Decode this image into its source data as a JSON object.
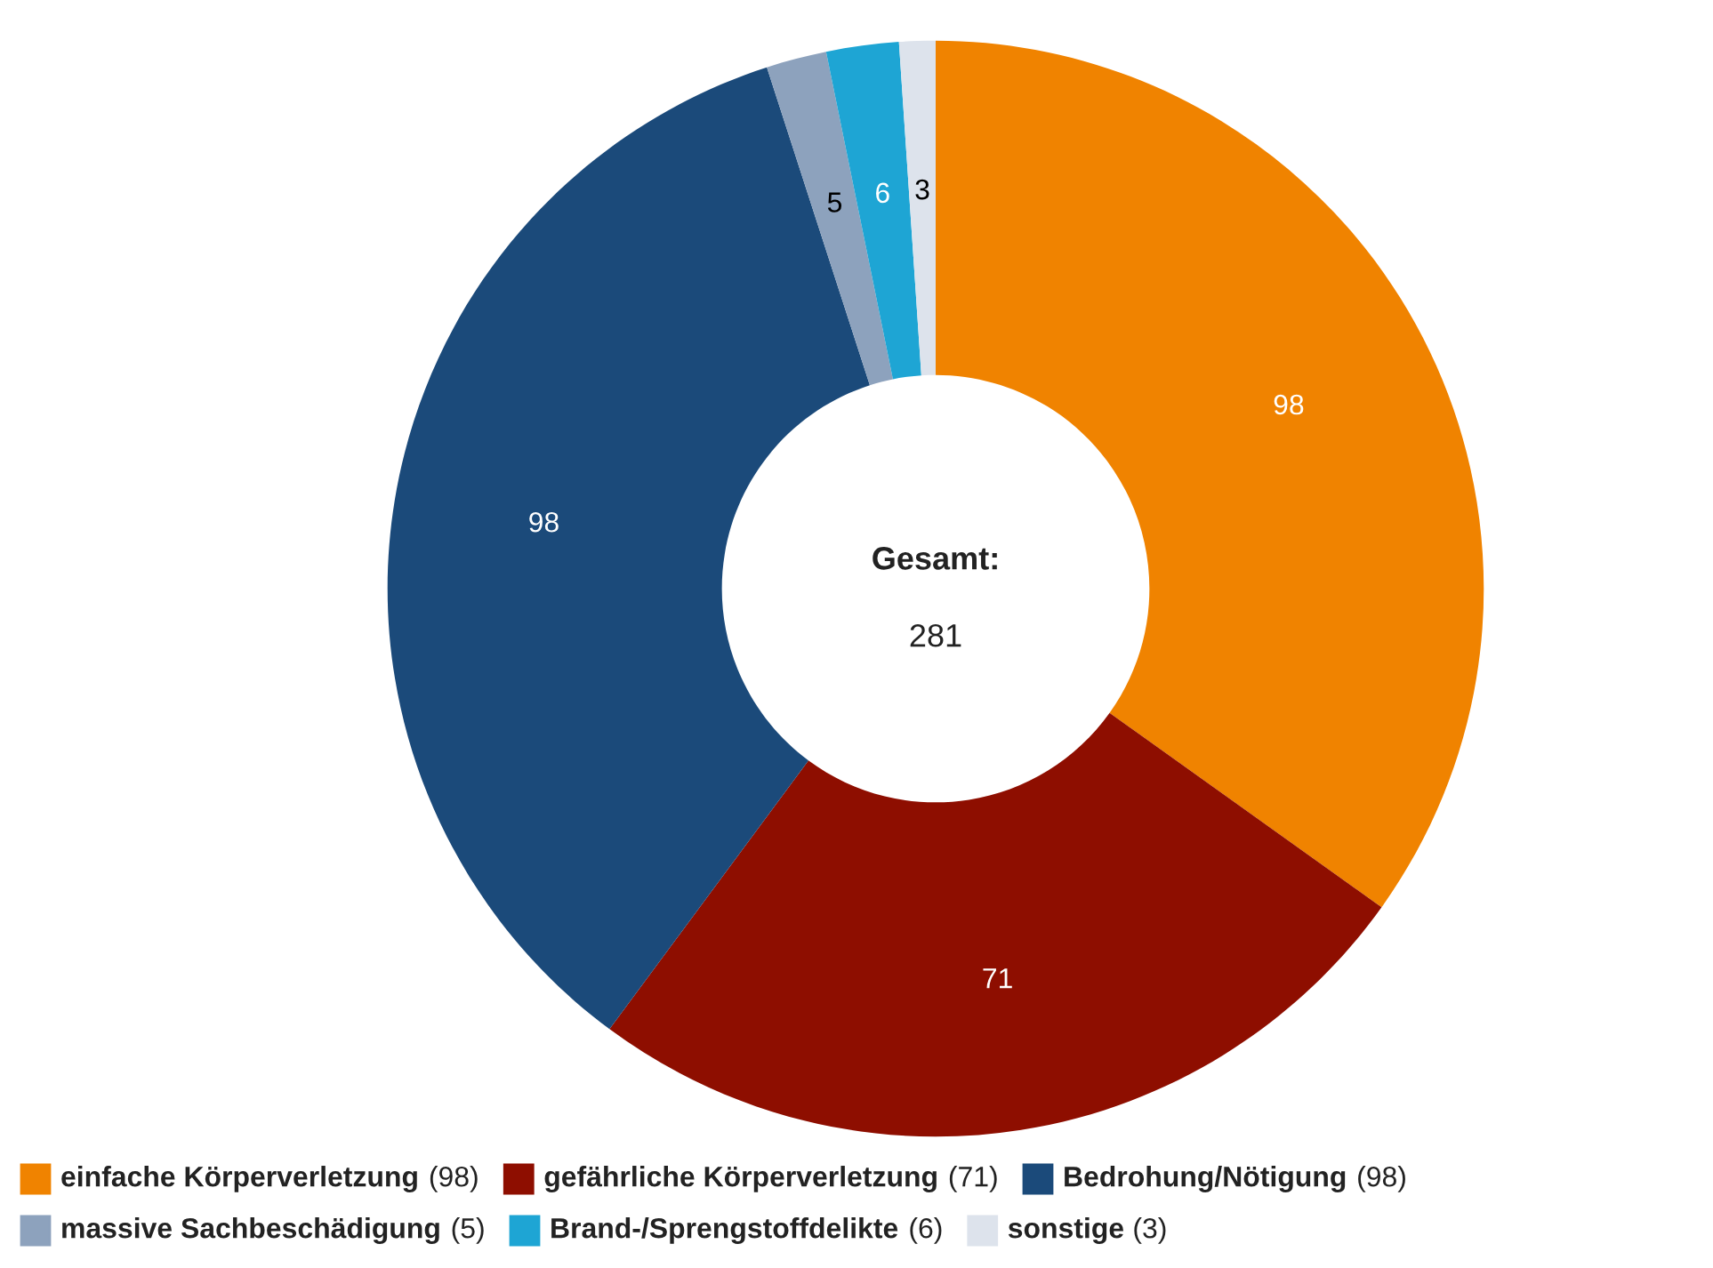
{
  "chart_data": {
    "type": "donut",
    "categories": [
      "einfache Körperverletzung (98)",
      "gefährliche Körperverletzung (71)",
      "Bedrohung/Nötigung (98)",
      "massive Sachbeschädigung (5)",
      "Brand-/Sprengstoffdelikte (6)",
      "sonstige (3)"
    ],
    "values": [
      98,
      71,
      98,
      5,
      6,
      3
    ],
    "colors": [
      "#f08300",
      "#8e0e00",
      "#1b4a7a",
      "#8da2bd",
      "#1ea5d4",
      "#dde3ec"
    ],
    "data_labels": true,
    "legend": "bottom",
    "annotations": [
      "Gesamt:",
      "281"
    ]
  }
}
